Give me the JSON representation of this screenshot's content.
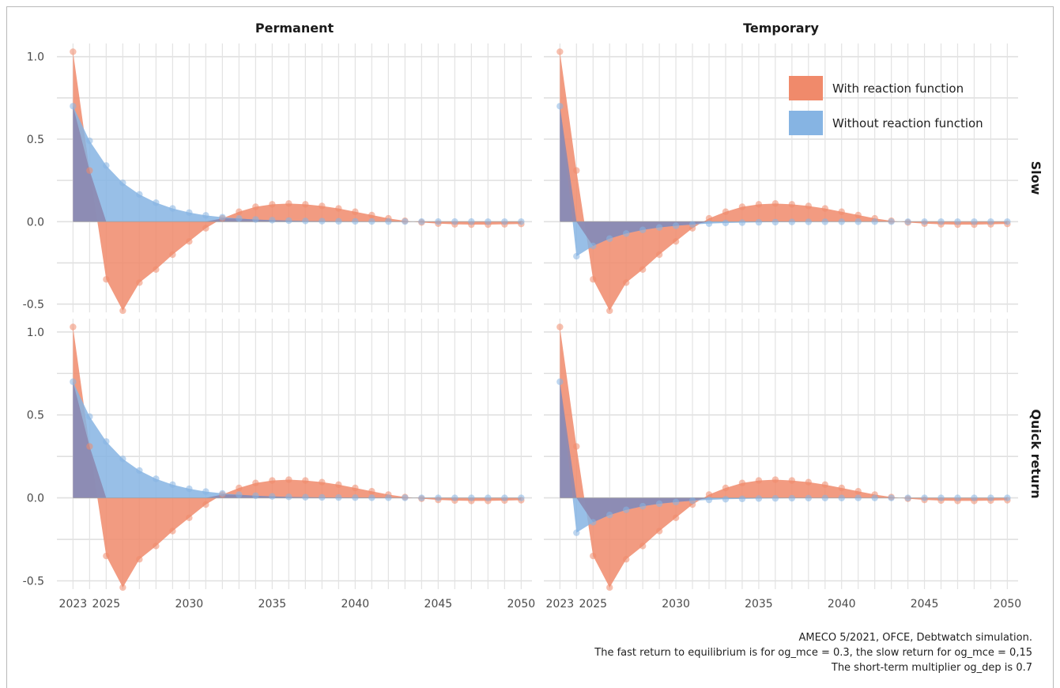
{
  "chart_data": {
    "type": "area",
    "facets": {
      "columns": [
        "Permanent",
        "Temporary"
      ],
      "rows": [
        "Slow",
        "Quick return"
      ]
    },
    "x": [
      2023,
      2024,
      2025,
      2026,
      2027,
      2028,
      2029,
      2030,
      2031,
      2032,
      2033,
      2034,
      2035,
      2036,
      2037,
      2038,
      2039,
      2040,
      2041,
      2042,
      2043,
      2044,
      2045,
      2046,
      2047,
      2048,
      2049,
      2050
    ],
    "xticks": [
      2023,
      2025,
      2030,
      2035,
      2040,
      2045,
      2050
    ],
    "xtick_labels": [
      "2023",
      "2025",
      "2030",
      "2035",
      "2040",
      "2045",
      "2050"
    ],
    "yticks": [
      -0.5,
      0.0,
      0.5,
      1.0
    ],
    "ytick_labels": [
      "-0.5",
      "0.0",
      "0.5",
      "1.0"
    ],
    "ylim": [
      -0.55,
      1.08
    ],
    "grid": true,
    "legend": {
      "placement": "top-right",
      "entries": [
        {
          "name": "With reaction function",
          "color": "#f08a6b"
        },
        {
          "name": "Without reaction function",
          "color": "#86b4e3"
        }
      ]
    },
    "colors": {
      "with": "#f08a6b",
      "without": "#86b4e3",
      "overlap": "#8c88b0"
    },
    "series": [
      {
        "name": "With reaction function",
        "panels": {
          "Permanent": [
            1.03,
            0.31,
            -0.35,
            -0.54,
            -0.37,
            -0.29,
            -0.2,
            -0.12,
            -0.04,
            0.02,
            0.06,
            0.09,
            0.105,
            0.11,
            0.105,
            0.095,
            0.08,
            0.06,
            0.04,
            0.02,
            0.005,
            -0.005,
            -0.012,
            -0.016,
            -0.018,
            -0.018,
            -0.016,
            -0.014
          ],
          "Temporary": [
            1.03,
            0.31,
            -0.35,
            -0.54,
            -0.37,
            -0.29,
            -0.2,
            -0.12,
            -0.04,
            0.02,
            0.06,
            0.09,
            0.105,
            0.11,
            0.105,
            0.095,
            0.08,
            0.06,
            0.04,
            0.02,
            0.005,
            -0.005,
            -0.012,
            -0.016,
            -0.018,
            -0.018,
            -0.016,
            -0.014
          ]
        }
      },
      {
        "name": "Without reaction function",
        "panels": {
          "Permanent": [
            0.7,
            0.49,
            0.34,
            0.235,
            0.165,
            0.115,
            0.08,
            0.055,
            0.038,
            0.027,
            0.019,
            0.013,
            0.009,
            0.006,
            0.004,
            0.003,
            0.002,
            0.0015,
            0.001,
            0.0007,
            0.0005,
            0.0003,
            0.0002,
            0.0001,
            0.0001,
            0.0,
            0.0,
            0.0
          ],
          "Temporary": [
            0.7,
            -0.21,
            -0.147,
            -0.103,
            -0.072,
            -0.05,
            -0.035,
            -0.025,
            -0.017,
            -0.012,
            -0.008,
            -0.006,
            -0.004,
            -0.003,
            -0.002,
            -0.0015,
            -0.001,
            -0.0007,
            -0.0005,
            -0.0003,
            -0.0002,
            -0.0001,
            -0.0001,
            0.0,
            0.0,
            0.0,
            0.0,
            0.0
          ]
        }
      }
    ],
    "caption": [
      "AMECO 5/2021, OFCE,  Debtwatch simulation.",
      "The fast return to equilibrium is for og_mce = 0.3, the slow return for og_mce = 0,15",
      "The short-term multiplier og_dep is 0.7"
    ]
  }
}
